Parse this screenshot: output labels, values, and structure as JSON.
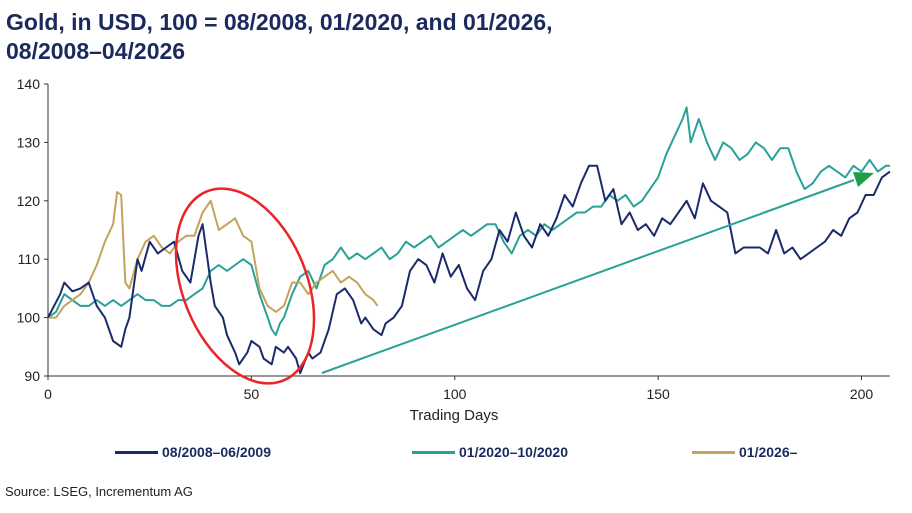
{
  "title_line1": "Gold, in USD, 100 = 08/2008, 01/2020, and 01/2026,",
  "title_line2": "08/2008–04/2026",
  "source": "Source: LSEG, Incrementum AG",
  "chart_data": {
    "type": "line",
    "xlabel": "Trading Days",
    "ylabel": "",
    "xlim": [
      0,
      207
    ],
    "ylim": [
      90,
      140
    ],
    "x_ticks": [
      0,
      50,
      100,
      150,
      200
    ],
    "y_ticks": [
      90,
      100,
      110,
      120,
      130,
      140
    ],
    "grid": false,
    "legend_position": "bottom",
    "series": [
      {
        "name": "08/2008–06/2009",
        "color": "#1b2a6b",
        "x": [
          0,
          3,
          4,
          6,
          8,
          10,
          12,
          14,
          16,
          18,
          19,
          20,
          22,
          23,
          25,
          27,
          29,
          31,
          33,
          35,
          37,
          38,
          40,
          41,
          43,
          44,
          46,
          47,
          49,
          50,
          52,
          53,
          55,
          56,
          58,
          59,
          61,
          62,
          64,
          65,
          67,
          69,
          71,
          73,
          75,
          77,
          78,
          80,
          82,
          83,
          85,
          87,
          89,
          91,
          93,
          95,
          97,
          99,
          101,
          103,
          105,
          107,
          109,
          111,
          113,
          115,
          117,
          119,
          121,
          123,
          125,
          127,
          129,
          131,
          133,
          135,
          137,
          139,
          141,
          143,
          145,
          147,
          149,
          151,
          153,
          155,
          157,
          159,
          161,
          163,
          165,
          167,
          169,
          171,
          173,
          175,
          177,
          179,
          181,
          183,
          185,
          187,
          189,
          191,
          193,
          195,
          197,
          199,
          201,
          203,
          205,
          207
        ],
        "values": [
          100,
          104,
          106,
          104.5,
          105,
          106,
          102,
          100,
          96,
          95,
          98,
          100,
          110,
          108,
          113,
          111,
          112,
          113,
          108,
          106,
          114,
          116,
          106,
          102,
          100,
          97,
          94,
          92,
          94,
          96,
          95,
          93,
          92,
          95,
          94,
          95,
          93,
          90.5,
          94,
          93,
          94,
          98,
          104,
          105,
          103,
          99,
          100,
          98,
          97,
          99,
          100,
          102,
          108,
          110,
          109,
          106,
          111,
          107,
          109,
          105,
          103,
          108,
          110,
          115,
          113,
          118,
          114,
          112,
          116,
          114,
          117,
          121,
          119,
          123,
          126,
          126,
          120,
          122,
          116,
          118,
          115,
          116,
          114,
          117,
          116,
          118,
          120,
          117,
          123,
          120,
          119,
          118,
          111,
          112,
          112,
          112,
          111,
          115,
          111,
          112,
          110,
          111,
          112,
          113,
          115,
          114,
          117,
          118,
          121,
          121,
          124,
          125
        ]
      },
      {
        "name": "01/2020–10/2020",
        "color": "#2aa198",
        "x": [
          0,
          2,
          4,
          6,
          8,
          10,
          12,
          14,
          16,
          18,
          20,
          22,
          24,
          26,
          28,
          30,
          32,
          34,
          36,
          38,
          40,
          42,
          44,
          46,
          48,
          50,
          52,
          54,
          55,
          56,
          57,
          58,
          60,
          62,
          64,
          66,
          68,
          70,
          72,
          74,
          76,
          78,
          80,
          82,
          84,
          86,
          88,
          90,
          92,
          94,
          96,
          98,
          100,
          102,
          104,
          106,
          108,
          110,
          112,
          114,
          116,
          118,
          120,
          122,
          124,
          126,
          128,
          130,
          132,
          134,
          136,
          138,
          140,
          142,
          144,
          146,
          148,
          150,
          152,
          154,
          156,
          157,
          158,
          160,
          162,
          164,
          166,
          168,
          170,
          172,
          174,
          176,
          178,
          180,
          182,
          184,
          186,
          188,
          190,
          192,
          194,
          196,
          198,
          200,
          202,
          204,
          206,
          207
        ],
        "values": [
          100,
          101,
          104,
          103,
          102,
          102,
          103,
          102,
          103,
          102,
          103,
          104,
          103,
          103,
          102,
          102,
          103,
          103,
          104,
          105,
          108,
          109,
          108,
          109,
          110,
          109,
          104,
          100,
          98,
          97,
          99,
          100,
          104,
          107,
          108,
          105,
          109,
          110,
          112,
          110,
          111,
          110,
          111,
          112,
          110,
          111,
          113,
          112,
          113,
          114,
          112,
          113,
          114,
          115,
          114,
          115,
          116,
          116,
          113,
          111,
          114,
          115,
          114,
          116,
          115,
          116,
          117,
          118,
          118,
          119,
          119,
          121,
          120,
          121,
          119,
          120,
          122,
          124,
          128,
          131,
          134,
          136,
          130,
          134,
          130,
          127,
          130,
          129,
          127,
          128,
          130,
          129,
          127,
          129,
          129,
          125,
          122,
          123,
          125,
          126,
          125,
          124,
          126,
          125,
          127,
          125,
          126,
          126
        ]
      },
      {
        "name": "01/2026–",
        "color": "#c4a35a",
        "x": [
          0,
          2,
          4,
          6,
          8,
          10,
          12,
          14,
          16,
          17,
          18,
          19,
          20,
          22,
          24,
          26,
          28,
          30,
          32,
          34,
          36,
          38,
          40,
          42,
          44,
          46,
          48,
          50,
          52,
          54,
          56,
          58,
          60,
          62,
          64,
          66,
          68,
          70,
          72,
          74,
          76,
          78,
          80,
          81
        ],
        "values": [
          100,
          100,
          102,
          103,
          104,
          106,
          109,
          113,
          116,
          121.5,
          121,
          106,
          105,
          110,
          113,
          114,
          112,
          111,
          113,
          114,
          114,
          118,
          120,
          115,
          116,
          117,
          114,
          113,
          105,
          102,
          101,
          102,
          106,
          106,
          104,
          106,
          107,
          108,
          106,
          107,
          106,
          104,
          103,
          102
        ]
      }
    ]
  },
  "annotations": {
    "ellipse_color": "#e8262a",
    "arrow_color": "#2aa198"
  }
}
